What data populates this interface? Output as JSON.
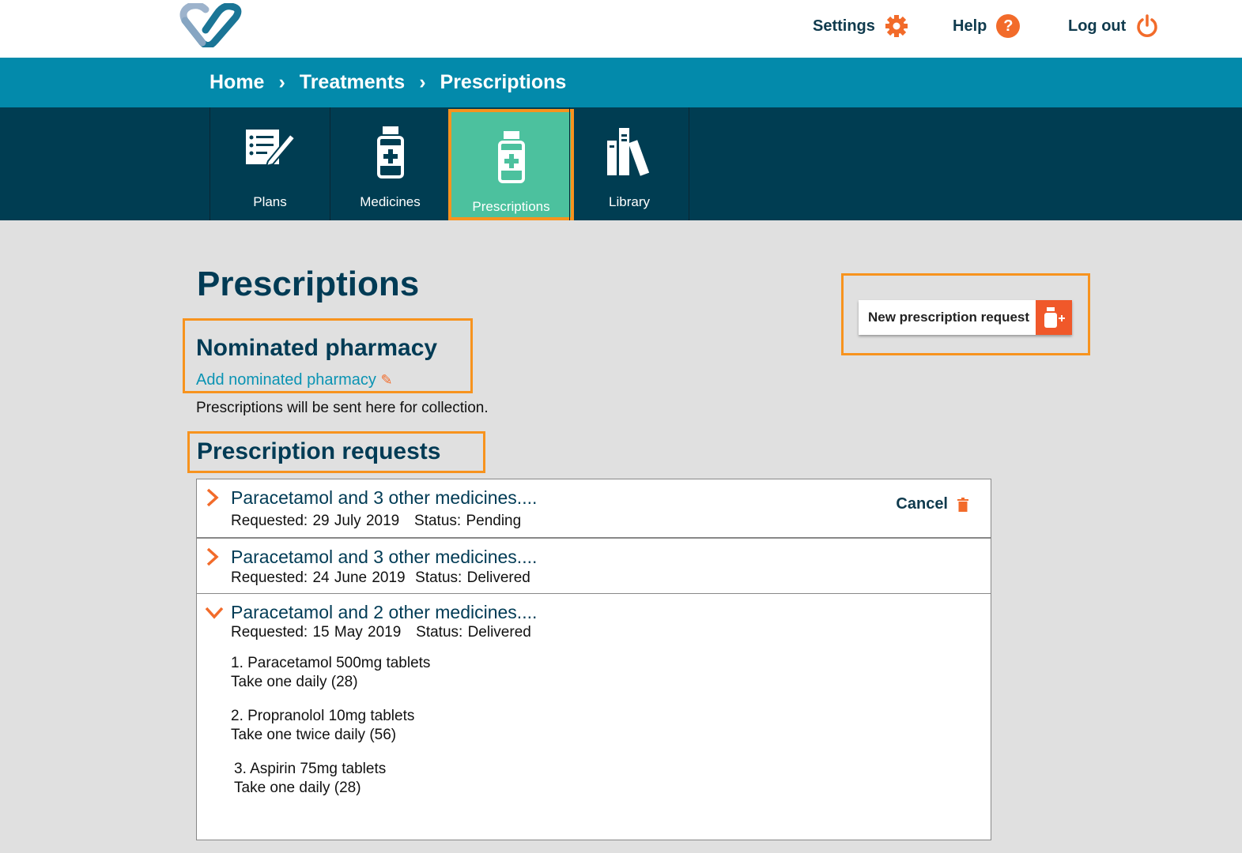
{
  "header": {
    "settings": "Settings",
    "help": "Help",
    "logout": "Log out",
    "help_glyph": "?"
  },
  "breadcrumb": [
    "Home",
    "Treatments",
    "Prescriptions"
  ],
  "tabs": [
    {
      "label": "Plans",
      "icon": "plan-icon"
    },
    {
      "label": "Medicines",
      "icon": "medicine-bottle-icon"
    },
    {
      "label": "Prescriptions",
      "icon": "medicine-bottle-icon",
      "active": true
    },
    {
      "label": "Library",
      "icon": "books-icon"
    }
  ],
  "page": {
    "title": "Prescriptions",
    "new_request": "New prescription request",
    "nominated_title": "Nominated pharmacy",
    "add_pharmacy": "Add nominated pharmacy",
    "pharmacy_note": "Prescriptions will be sent here for collection.",
    "requests_title": "Prescription requests"
  },
  "requests": [
    {
      "title": "Paracetamol and 3 other medicines....",
      "meta": "Requested: 29 July 2019   Status: Pending",
      "cancel": "Cancel",
      "expanded": false
    },
    {
      "title": "Paracetamol and 3 other medicines....",
      "meta": "Requested: 24 June 2019  Status: Delivered",
      "expanded": false
    },
    {
      "title": "Paracetamol and 2 other medicines....",
      "meta": "Requested: 15 May 2019   Status: Delivered",
      "expanded": true,
      "items": [
        {
          "name": "1. Paracetamol 500mg tablets",
          "dose": "Take one daily (28)"
        },
        {
          "name": "2. Propranolol 10mg tablets",
          "dose": "Take one twice daily (56)"
        },
        {
          "name": "3. Aspirin 75mg tablets",
          "dose": "Take one daily (28)"
        }
      ]
    }
  ],
  "colors": {
    "accent": "#f26b2a",
    "breadcrumb_bg": "#038aab",
    "nav_bg": "#003d52",
    "active_tab": "#4cc19e",
    "highlight": "#f7931e"
  }
}
